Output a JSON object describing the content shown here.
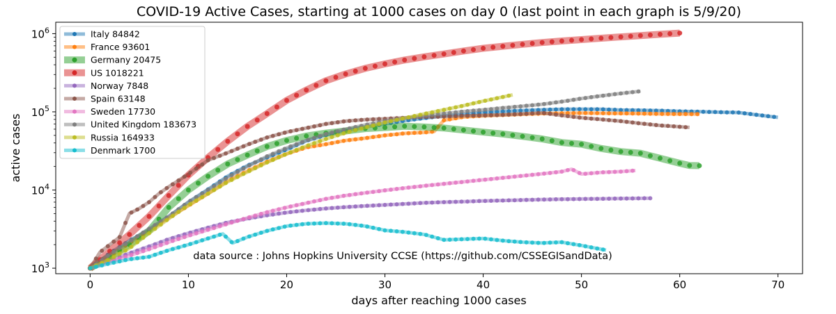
{
  "chart_data": {
    "type": "line",
    "title": "COVID-19 Active Cases, starting at 1000 cases on day 0 (last point in each graph is 5/9/20)",
    "xlabel": "days after reaching 1000 cases",
    "ylabel": "active cases",
    "xlim": [
      -3.5,
      72.5
    ],
    "ylim": [
      850,
      1400000
    ],
    "y_scale": "log",
    "grid": false,
    "legend_position": "upper left",
    "x_ticks": [
      0,
      10,
      20,
      30,
      40,
      50,
      60,
      70
    ],
    "x_tick_labels": [
      "0",
      "10",
      "20",
      "30",
      "40",
      "50",
      "60",
      "70"
    ],
    "y_ticks": [
      1000,
      10000,
      100000,
      1000000
    ],
    "y_tick_labels": [
      {
        "base": "10",
        "exp": "3"
      },
      {
        "base": "10",
        "exp": "4"
      },
      {
        "base": "10",
        "exp": "5"
      },
      {
        "base": "10",
        "exp": "6"
      }
    ],
    "annotation": "data source : Johns Hopkins University CCSE (https://github.com/CSSEGISandData)",
    "series": [
      {
        "name": "Italy 84842",
        "color": "#1f77b4",
        "width": 5,
        "dot": 3,
        "dotstep": 0.6,
        "x": [
          0,
          2,
          4,
          6,
          8,
          10,
          12,
          14,
          16,
          18,
          20,
          22,
          24,
          26,
          28,
          30,
          32,
          34,
          36,
          38,
          40,
          42,
          44,
          46,
          48,
          50,
          52,
          54,
          56,
          58,
          60,
          62,
          64,
          66,
          68,
          70
        ],
        "y": [
          1000,
          1550,
          2250,
          3100,
          4600,
          7000,
          10200,
          15000,
          20500,
          26000,
          33000,
          42600,
          50400,
          57500,
          64000,
          70100,
          77000,
          83000,
          89000,
          93000,
          98000,
          101000,
          104000,
          106000,
          108000,
          108200,
          107800,
          105500,
          104500,
          103500,
          101500,
          100500,
          99000,
          98000,
          91000,
          84842
        ]
      },
      {
        "name": "France 93601",
        "color": "#ff7f0e",
        "width": 5,
        "dot": 3,
        "dotstep": 0.6,
        "x": [
          0,
          2,
          4,
          6,
          8,
          10,
          12,
          14,
          16,
          18,
          20,
          22,
          24,
          26,
          28,
          30,
          32,
          34,
          35,
          36,
          38,
          40,
          42,
          44,
          46,
          48,
          50,
          52,
          54,
          56,
          58,
          60,
          62
        ],
        "y": [
          1000,
          1400,
          2100,
          3000,
          4400,
          6300,
          9000,
          13000,
          17500,
          23000,
          29000,
          35000,
          38500,
          43000,
          46000,
          50000,
          53000,
          54500,
          56000,
          78000,
          86000,
          89000,
          91000,
          93000,
          95000,
          96000,
          96500,
          96000,
          95500,
          95000,
          94000,
          93800,
          93601
        ]
      },
      {
        "name": "Germany 20475",
        "color": "#2ca02c",
        "width": 10,
        "dot": 3.5,
        "dotstep": 1.0,
        "x": [
          0,
          2,
          4,
          6,
          8,
          10,
          12,
          14,
          16,
          18,
          20,
          22,
          24,
          26,
          28,
          30,
          32,
          34,
          36,
          38,
          40,
          42,
          44,
          46,
          48,
          50,
          52,
          54,
          56,
          58,
          60,
          61,
          62
        ],
        "y": [
          1000,
          1400,
          2000,
          3000,
          6000,
          10000,
          15000,
          21500,
          28000,
          36000,
          43000,
          49000,
          53500,
          57000,
          61000,
          63000,
          65500,
          64000,
          62000,
          58500,
          55000,
          52000,
          48500,
          45000,
          40500,
          38500,
          34000,
          31000,
          29500,
          25500,
          22000,
          20600,
          20475
        ]
      },
      {
        "name": "US 1018221",
        "color": "#d62728",
        "width": 10,
        "dot": 3.5,
        "dotstep": 1.0,
        "x": [
          0,
          2,
          4,
          6,
          8,
          10,
          12,
          14,
          16,
          18,
          20,
          22,
          24,
          26,
          28,
          30,
          32,
          34,
          36,
          38,
          40,
          42,
          44,
          46,
          48,
          50,
          52,
          54,
          56,
          58,
          60
        ],
        "y": [
          1000,
          1650,
          2700,
          4600,
          8500,
          15500,
          26000,
          42000,
          65000,
          95000,
          140000,
          190000,
          250000,
          305000,
          360000,
          410000,
          460000,
          505000,
          550000,
          600000,
          650000,
          690000,
          730000,
          770000,
          805000,
          840000,
          875000,
          910000,
          945000,
          980000,
          1018221
        ]
      },
      {
        "name": "Norway 7848",
        "color": "#9467bd",
        "width": 5,
        "dot": 3,
        "dotstep": 0.6,
        "x": [
          0,
          2,
          4,
          6,
          8,
          10,
          12,
          14,
          16,
          18,
          20,
          22,
          24,
          26,
          28,
          30,
          32,
          34,
          36,
          38,
          40,
          42,
          44,
          46,
          48,
          50,
          52,
          54,
          57
        ],
        "y": [
          1000,
          1250,
          1550,
          1900,
          2350,
          2800,
          3300,
          3850,
          4300,
          4750,
          5150,
          5500,
          5800,
          6050,
          6250,
          6450,
          6650,
          6850,
          7000,
          7100,
          7250,
          7350,
          7450,
          7550,
          7620,
          7680,
          7730,
          7780,
          7848
        ]
      },
      {
        "name": "Spain 63148",
        "color": "#8c564b",
        "width": 5,
        "dot": 3,
        "dotstep": 0.6,
        "x": [
          0,
          1,
          2,
          3,
          4,
          5,
          6,
          7,
          8,
          10,
          12,
          14,
          16,
          18,
          20,
          22,
          24,
          26,
          28,
          30,
          32,
          34,
          36,
          38,
          40,
          42,
          44,
          46,
          48,
          50,
          52,
          54,
          56,
          58,
          61
        ],
        "y": [
          1000,
          1600,
          2000,
          2500,
          5000,
          5800,
          7000,
          9000,
          11000,
          16000,
          24000,
          30000,
          38000,
          47000,
          55000,
          62000,
          70000,
          76000,
          79500,
          81500,
          84000,
          86000,
          87000,
          89000,
          90000,
          91500,
          94000,
          97000,
          90000,
          84000,
          80000,
          76000,
          71000,
          67000,
          63148
        ]
      },
      {
        "name": "Sweden 17730",
        "color": "#e377c2",
        "width": 5,
        "dot": 3,
        "dotstep": 0.6,
        "x": [
          0,
          2,
          4,
          6,
          8,
          10,
          12,
          14,
          16,
          18,
          20,
          22,
          24,
          26,
          28,
          30,
          32,
          34,
          36,
          38,
          40,
          42,
          44,
          46,
          48,
          49,
          50,
          52,
          54,
          55.5
        ],
        "y": [
          1000,
          1200,
          1450,
          1750,
          2150,
          2600,
          3100,
          3700,
          4400,
          5200,
          6000,
          6800,
          7700,
          8500,
          9200,
          9900,
          10600,
          11300,
          12000,
          12700,
          13500,
          14300,
          15200,
          16100,
          17200,
          18500,
          16000,
          16800,
          17200,
          17730
        ]
      },
      {
        "name": "United Kingdom 183673",
        "color": "#7f7f7f",
        "width": 5,
        "dot": 3,
        "dotstep": 0.6,
        "x": [
          0,
          2,
          4,
          6,
          8,
          10,
          12,
          14,
          16,
          18,
          20,
          22,
          24,
          26,
          28,
          30,
          32,
          34,
          36,
          38,
          40,
          42,
          44,
          46,
          48,
          50,
          52,
          54,
          56
        ],
        "y": [
          1000,
          1500,
          2200,
          3200,
          4600,
          7000,
          10000,
          14500,
          20000,
          27000,
          34500,
          43000,
          52000,
          60000,
          68000,
          76000,
          83000,
          89000,
          95000,
          101000,
          106000,
          112000,
          118000,
          125000,
          135000,
          148000,
          160000,
          172000,
          183673
        ]
      },
      {
        "name": "Russia 164933",
        "color": "#bcbd22",
        "width": 5,
        "dot": 3,
        "dotstep": 0.6,
        "x": [
          0,
          2,
          4,
          6,
          8,
          10,
          12,
          14,
          16,
          18,
          20,
          22,
          24,
          26,
          28,
          30,
          32,
          34,
          36,
          38,
          40,
          42,
          43
        ],
        "y": [
          1000,
          1300,
          1800,
          2800,
          4300,
          6400,
          9000,
          12700,
          17000,
          22500,
          29000,
          36500,
          45000,
          54000,
          63000,
          73000,
          83000,
          94000,
          106000,
          120000,
          137000,
          155000,
          164933
        ]
      },
      {
        "name": "Denmark 1700",
        "color": "#17becf",
        "width": 5,
        "dot": 3,
        "dotstep": 0.6,
        "x": [
          0,
          2,
          4,
          6,
          8,
          10,
          12,
          13.5,
          14.5,
          16,
          18,
          20,
          22,
          24,
          26,
          28,
          30,
          32,
          34,
          36,
          38,
          40,
          42,
          44,
          46,
          48,
          50,
          52.5
        ],
        "y": [
          1000,
          1150,
          1300,
          1400,
          1700,
          2000,
          2400,
          2750,
          2100,
          2500,
          3000,
          3450,
          3700,
          3780,
          3700,
          3450,
          3050,
          2900,
          2700,
          2300,
          2350,
          2400,
          2250,
          2150,
          2100,
          2150,
          1950,
          1700
        ]
      }
    ]
  }
}
